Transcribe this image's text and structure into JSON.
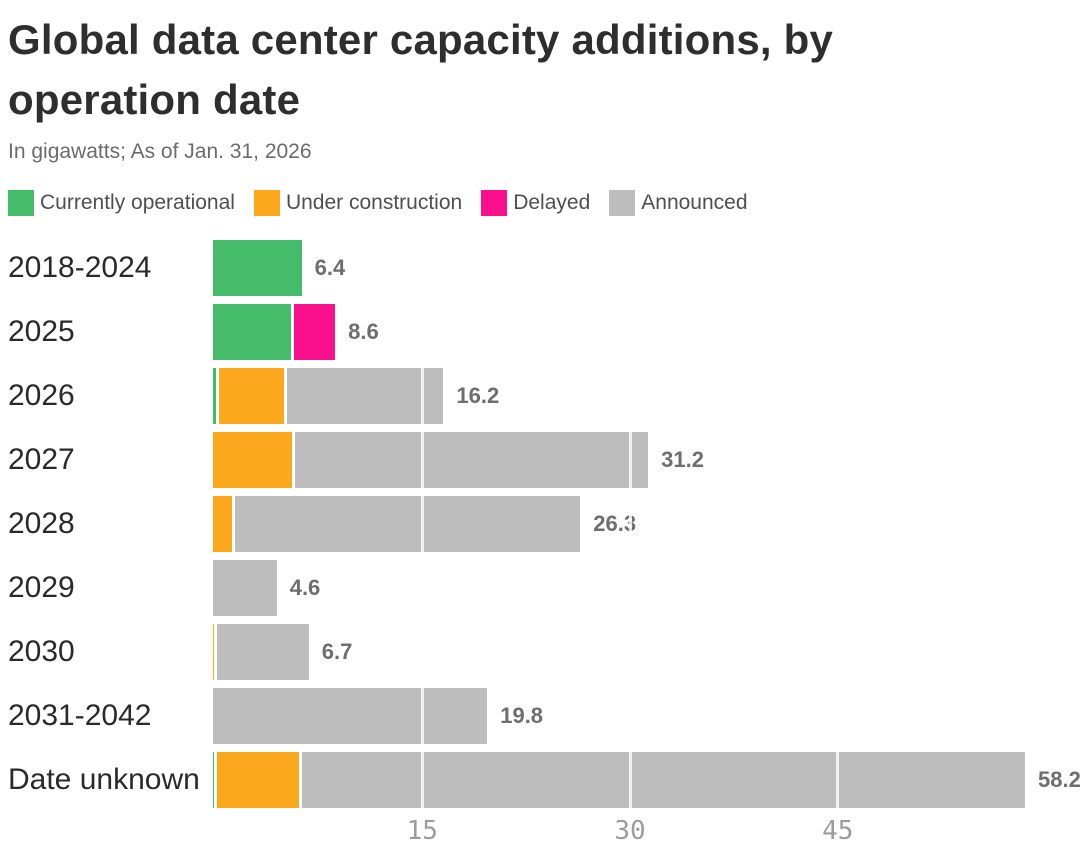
{
  "header": {
    "title": "Global data center capacity additions, by operation date",
    "subtitle": "In gigawatts; As of Jan. 31, 2026"
  },
  "colors": {
    "operational": "#45bc69",
    "construction": "#fca81c",
    "delayed": "#fa0f8c",
    "announced": "#bdbdbd",
    "title_text": "#2e2e2e",
    "subtitle_text": "#6b6b6b",
    "row_label_text": "#2a2a2a",
    "value_label_text": "#6e6e6e",
    "tick_text": "#9c9c9c"
  },
  "chart_data": {
    "type": "bar",
    "orientation": "horizontal",
    "stacked": true,
    "unit": "gigawatts",
    "title": "Global data center capacity additions, by operation date",
    "subtitle": "In gigawatts; As of Jan. 31, 2026",
    "categories": [
      "2018-2024",
      "2025",
      "2026",
      "2027",
      "2028",
      "2029",
      "2030",
      "2031-2042",
      "Date unknown"
    ],
    "series": [
      {
        "name": "Currently operational",
        "key": "operational",
        "color": "#45bc69",
        "values": [
          6.4,
          5.6,
          0.2,
          0,
          0,
          0,
          0,
          0,
          0.1
        ]
      },
      {
        "name": "Under construction",
        "key": "construction",
        "color": "#fca81c",
        "values": [
          0,
          0,
          4.7,
          5.7,
          1.4,
          0,
          0.1,
          0,
          5.9
        ]
      },
      {
        "name": "Delayed",
        "key": "delayed",
        "color": "#fa0f8c",
        "values": [
          0,
          3.0,
          0,
          0,
          0,
          0,
          0,
          0,
          0
        ]
      },
      {
        "name": "Announced",
        "key": "announced",
        "color": "#bdbdbd",
        "values": [
          0,
          0,
          11.3,
          25.5,
          24.9,
          4.6,
          6.6,
          19.8,
          52.2
        ]
      }
    ],
    "totals": [
      6.4,
      8.6,
      16.2,
      31.2,
      26.3,
      4.6,
      6.7,
      19.8,
      58.2
    ],
    "total_labels": [
      "6.4",
      "8.6",
      "16.2",
      "31.2",
      "26.3",
      "4.6",
      "6.7",
      "19.8",
      "58.2"
    ],
    "x_ticks": [
      15,
      30,
      45
    ],
    "x_tick_labels": [
      "15",
      "30",
      "45"
    ],
    "xlim": [
      0,
      62.6
    ],
    "legend_position": "top",
    "grid": "white vertical gridlines over bars at ticks"
  }
}
